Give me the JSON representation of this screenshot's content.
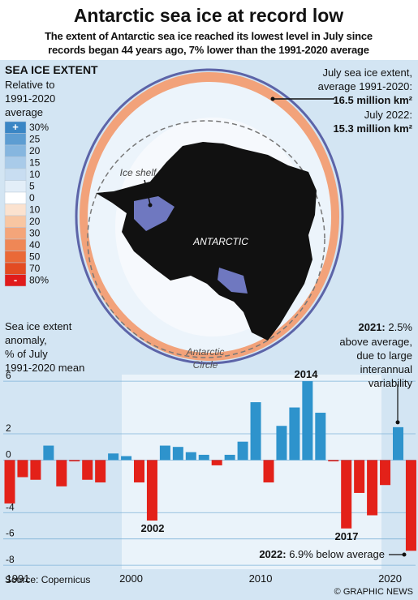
{
  "header": {
    "title": "Antarctic sea ice at record low",
    "subtitle": [
      "The extent of Antarctic sea ice reached its lowest level in July since",
      "records began 44 years ago, 7% lower than the 1991-2020 average"
    ]
  },
  "map": {
    "legend_title": "SEA ICE EXTENT",
    "legend_subtitle": [
      "Relative to",
      "1991-2020",
      "average"
    ],
    "plus": "+",
    "minus": "-",
    "legend": [
      {
        "label": "30%",
        "color": "#3a86c5"
      },
      {
        "label": "25",
        "color": "#5d9dd2"
      },
      {
        "label": "20",
        "color": "#86b6df"
      },
      {
        "label": "15",
        "color": "#a9cbe9"
      },
      {
        "label": "10",
        "color": "#c8ddf1"
      },
      {
        "label": "5",
        "color": "#e3eef8"
      },
      {
        "label": "0",
        "color": "#ffffff"
      },
      {
        "label": "10",
        "color": "#fbe2cf"
      },
      {
        "label": "20",
        "color": "#f8c6a2"
      },
      {
        "label": "30",
        "color": "#f4a57a"
      },
      {
        "label": "40",
        "color": "#ef8756"
      },
      {
        "label": "50",
        "color": "#ea6937"
      },
      {
        "label": "70",
        "color": "#e34b22"
      },
      {
        "label": "80%",
        "color": "#e01b1b"
      }
    ],
    "average_label": [
      "July sea ice extent,",
      "average 1991-2020:"
    ],
    "average_value": "16.5 million km²",
    "current_label": "July 2022:",
    "current_value": "15.3 million km²",
    "ice_shelf": "Ice shelf",
    "continent": "ANTARCTIC",
    "circle_label": [
      "Antarctic",
      "Circle"
    ]
  },
  "chart_data": {
    "type": "bar",
    "ylabel": [
      "Sea ice extent",
      "anomaly,",
      "% of July",
      "1991-2020 mean"
    ],
    "categories": [
      "1991",
      null,
      null,
      null,
      null,
      null,
      null,
      null,
      null,
      "2000",
      null,
      null,
      null,
      null,
      null,
      null,
      null,
      null,
      null,
      "2010",
      null,
      null,
      null,
      null,
      null,
      null,
      null,
      null,
      null,
      "2020",
      null,
      null
    ],
    "values": [
      -3.3,
      -1.3,
      -1.5,
      1.1,
      -2.0,
      -0.1,
      -1.5,
      -1.7,
      0.5,
      0.3,
      -1.7,
      -4.6,
      1.1,
      1.0,
      0.6,
      0.4,
      -0.4,
      0.4,
      1.4,
      4.4,
      -1.7,
      2.6,
      4.0,
      6.0,
      3.6,
      -0.1,
      -5.2,
      -2.5,
      -4.2,
      -1.9,
      2.5,
      -6.9
    ],
    "positive_color": "#2e93cc",
    "negative_color": "#e32119",
    "ylim": [
      -8.3,
      6.5
    ],
    "yticks": [
      -8,
      -6,
      -4,
      0,
      2,
      6
    ],
    "grid": true,
    "annotations": [
      "2014",
      "2002",
      "2017"
    ],
    "callout_2021": {
      "bold": "2021:",
      "text": [
        " 2.5%",
        "above average,",
        "due to large",
        "interannual",
        "variability"
      ]
    },
    "callout_2022": {
      "bold": "2022:",
      "text": " 6.9% below average"
    }
  },
  "footer": {
    "source": "Source: Copernicus",
    "credit": "© GRAPHIC NEWS"
  }
}
